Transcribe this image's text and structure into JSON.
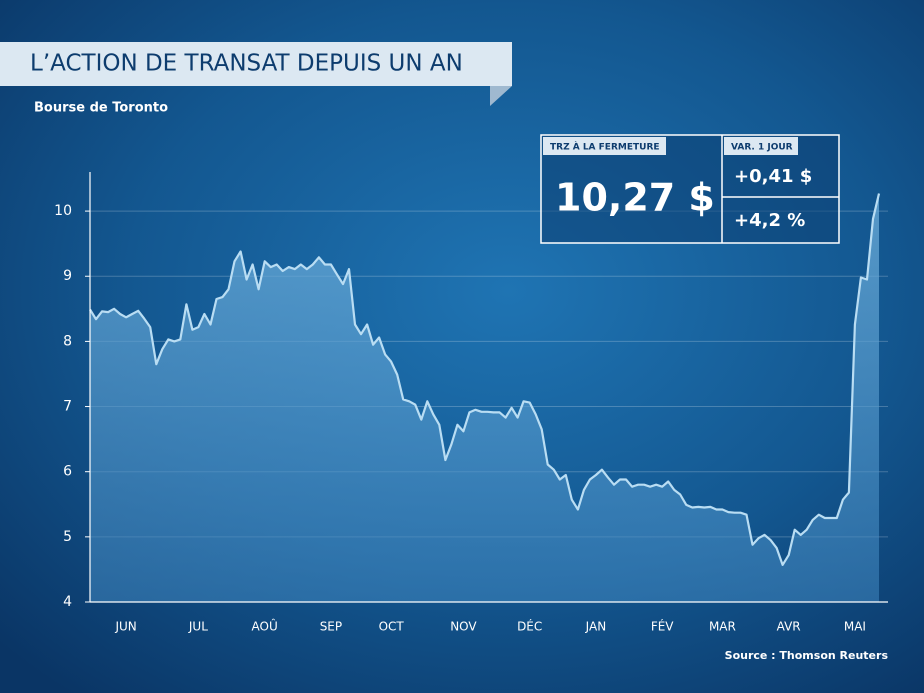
{
  "chart_data": {
    "type": "area",
    "title": "L’ACTION DE TRANSAT DEPUIS UN AN",
    "subtitle": "Bourse de Toronto",
    "source": "Source : Thomson Reuters",
    "panel": {
      "close_label": "TRZ À LA FERMETURE",
      "close": "10,27 $",
      "change_label": "VAR. 1 JOUR",
      "change": "+0,41 $",
      "change_pct": "+4,2 %"
    },
    "categories": [
      null,
      null,
      null,
      null,
      null,
      null,
      "JUN",
      null,
      null,
      null,
      null,
      null,
      null,
      null,
      null,
      null,
      null,
      null,
      "JUL",
      null,
      null,
      null,
      null,
      null,
      null,
      null,
      null,
      null,
      null,
      "AOÛ",
      null,
      null,
      null,
      null,
      null,
      null,
      null,
      null,
      null,
      null,
      "SEP",
      null,
      null,
      null,
      null,
      null,
      null,
      null,
      null,
      null,
      "OCT",
      null,
      null,
      null,
      null,
      null,
      null,
      null,
      null,
      null,
      null,
      null,
      "NOV",
      null,
      null,
      null,
      null,
      null,
      null,
      null,
      null,
      null,
      null,
      "DÉC",
      null,
      null,
      null,
      null,
      null,
      null,
      null,
      null,
      null,
      null,
      "JAN",
      null,
      null,
      null,
      null,
      null,
      null,
      null,
      null,
      null,
      null,
      "FÉV",
      null,
      null,
      null,
      null,
      null,
      null,
      null,
      null,
      null,
      "MAR",
      null,
      null,
      null,
      null,
      null,
      null,
      null,
      null,
      null,
      null,
      "AVR",
      null,
      null,
      null,
      null,
      null,
      null,
      null,
      null,
      null,
      null,
      "MAI",
      null,
      null,
      null,
      null
    ],
    "values": [
      8.49,
      8.34,
      8.46,
      8.45,
      8.5,
      8.42,
      8.37,
      8.42,
      8.47,
      8.35,
      8.22,
      7.65,
      7.88,
      8.03,
      8.0,
      8.03,
      8.57,
      8.18,
      8.22,
      8.42,
      8.26,
      8.65,
      8.68,
      8.8,
      9.23,
      9.38,
      8.95,
      9.18,
      8.8,
      9.23,
      9.14,
      9.18,
      9.08,
      9.14,
      9.11,
      9.18,
      9.11,
      9.18,
      9.29,
      9.18,
      9.18,
      9.03,
      8.88,
      9.11,
      8.26,
      8.11,
      8.26,
      7.95,
      8.06,
      7.8,
      7.69,
      7.49,
      7.11,
      7.08,
      7.03,
      6.8,
      7.08,
      6.88,
      6.72,
      6.18,
      6.42,
      6.72,
      6.62,
      6.91,
      6.95,
      6.92,
      6.92,
      6.91,
      6.91,
      6.83,
      6.98,
      6.83,
      7.08,
      7.06,
      6.88,
      6.65,
      6.11,
      6.03,
      5.88,
      5.95,
      5.57,
      5.42,
      5.72,
      5.88,
      5.95,
      6.03,
      5.91,
      5.8,
      5.88,
      5.88,
      5.77,
      5.8,
      5.8,
      5.77,
      5.8,
      5.77,
      5.85,
      5.72,
      5.65,
      5.49,
      5.45,
      5.46,
      5.45,
      5.46,
      5.42,
      5.42,
      5.38,
      5.37,
      5.37,
      5.34,
      4.88,
      4.98,
      5.03,
      4.95,
      4.83,
      4.57,
      4.72,
      5.11,
      5.03,
      5.11,
      5.26,
      5.34,
      5.29,
      5.29,
      5.29,
      5.57,
      5.68,
      8.26,
      8.98,
      8.95,
      9.88,
      10.27
    ],
    "color": "#b9ddf3",
    "ylim": [
      4,
      10.6
    ],
    "yticks": [
      4,
      5,
      6,
      7,
      8,
      9,
      10
    ],
    "grid": true
  }
}
